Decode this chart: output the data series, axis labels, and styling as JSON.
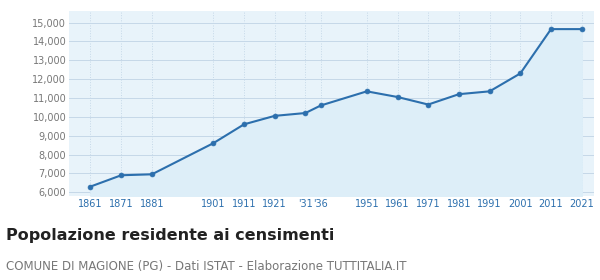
{
  "years": [
    1861,
    1871,
    1881,
    1901,
    1911,
    1921,
    1931,
    1936,
    1951,
    1961,
    1971,
    1981,
    1991,
    2001,
    2011,
    2021
  ],
  "population": [
    6300,
    6900,
    6950,
    8600,
    9600,
    10050,
    10200,
    10600,
    11350,
    11050,
    10650,
    11200,
    11350,
    12300,
    14650,
    14650
  ],
  "x_tick_labels": [
    "1861",
    "1871",
    "1881",
    "1901",
    "1911",
    "1921",
    "'31'36",
    "1951",
    "1961",
    "1971",
    "1981",
    "1991",
    "2001",
    "2011",
    "2021"
  ],
  "x_tick_positions": [
    1861,
    1871,
    1881,
    1901,
    1911,
    1921,
    1933,
    1951,
    1961,
    1971,
    1981,
    1991,
    2001,
    2011,
    2021
  ],
  "y_ticks": [
    6000,
    7000,
    8000,
    9000,
    10000,
    11000,
    12000,
    13000,
    14000,
    15000
  ],
  "y_tick_labels": [
    "6,000",
    "7,000",
    "8,000",
    "9,000",
    "10,000",
    "11,000",
    "12,000",
    "13,000",
    "14,000",
    "15,000"
  ],
  "line_color": "#2c6fad",
  "fill_color": "#ddeef8",
  "marker_color": "#2c6fad",
  "grid_color": "#c5d8e8",
  "background_color": "#ffffff",
  "plot_bg_color": "#e8f3fa",
  "title": "Popolazione residente ai censimenti",
  "subtitle": "COMUNE DI MAGIONE (PG) - Dati ISTAT - Elaborazione TUTTITALIA.IT",
  "ylim": [
    5800,
    15600
  ],
  "xlim_left": 1854,
  "xlim_right": 2025,
  "title_fontsize": 11.5,
  "subtitle_fontsize": 8.5
}
